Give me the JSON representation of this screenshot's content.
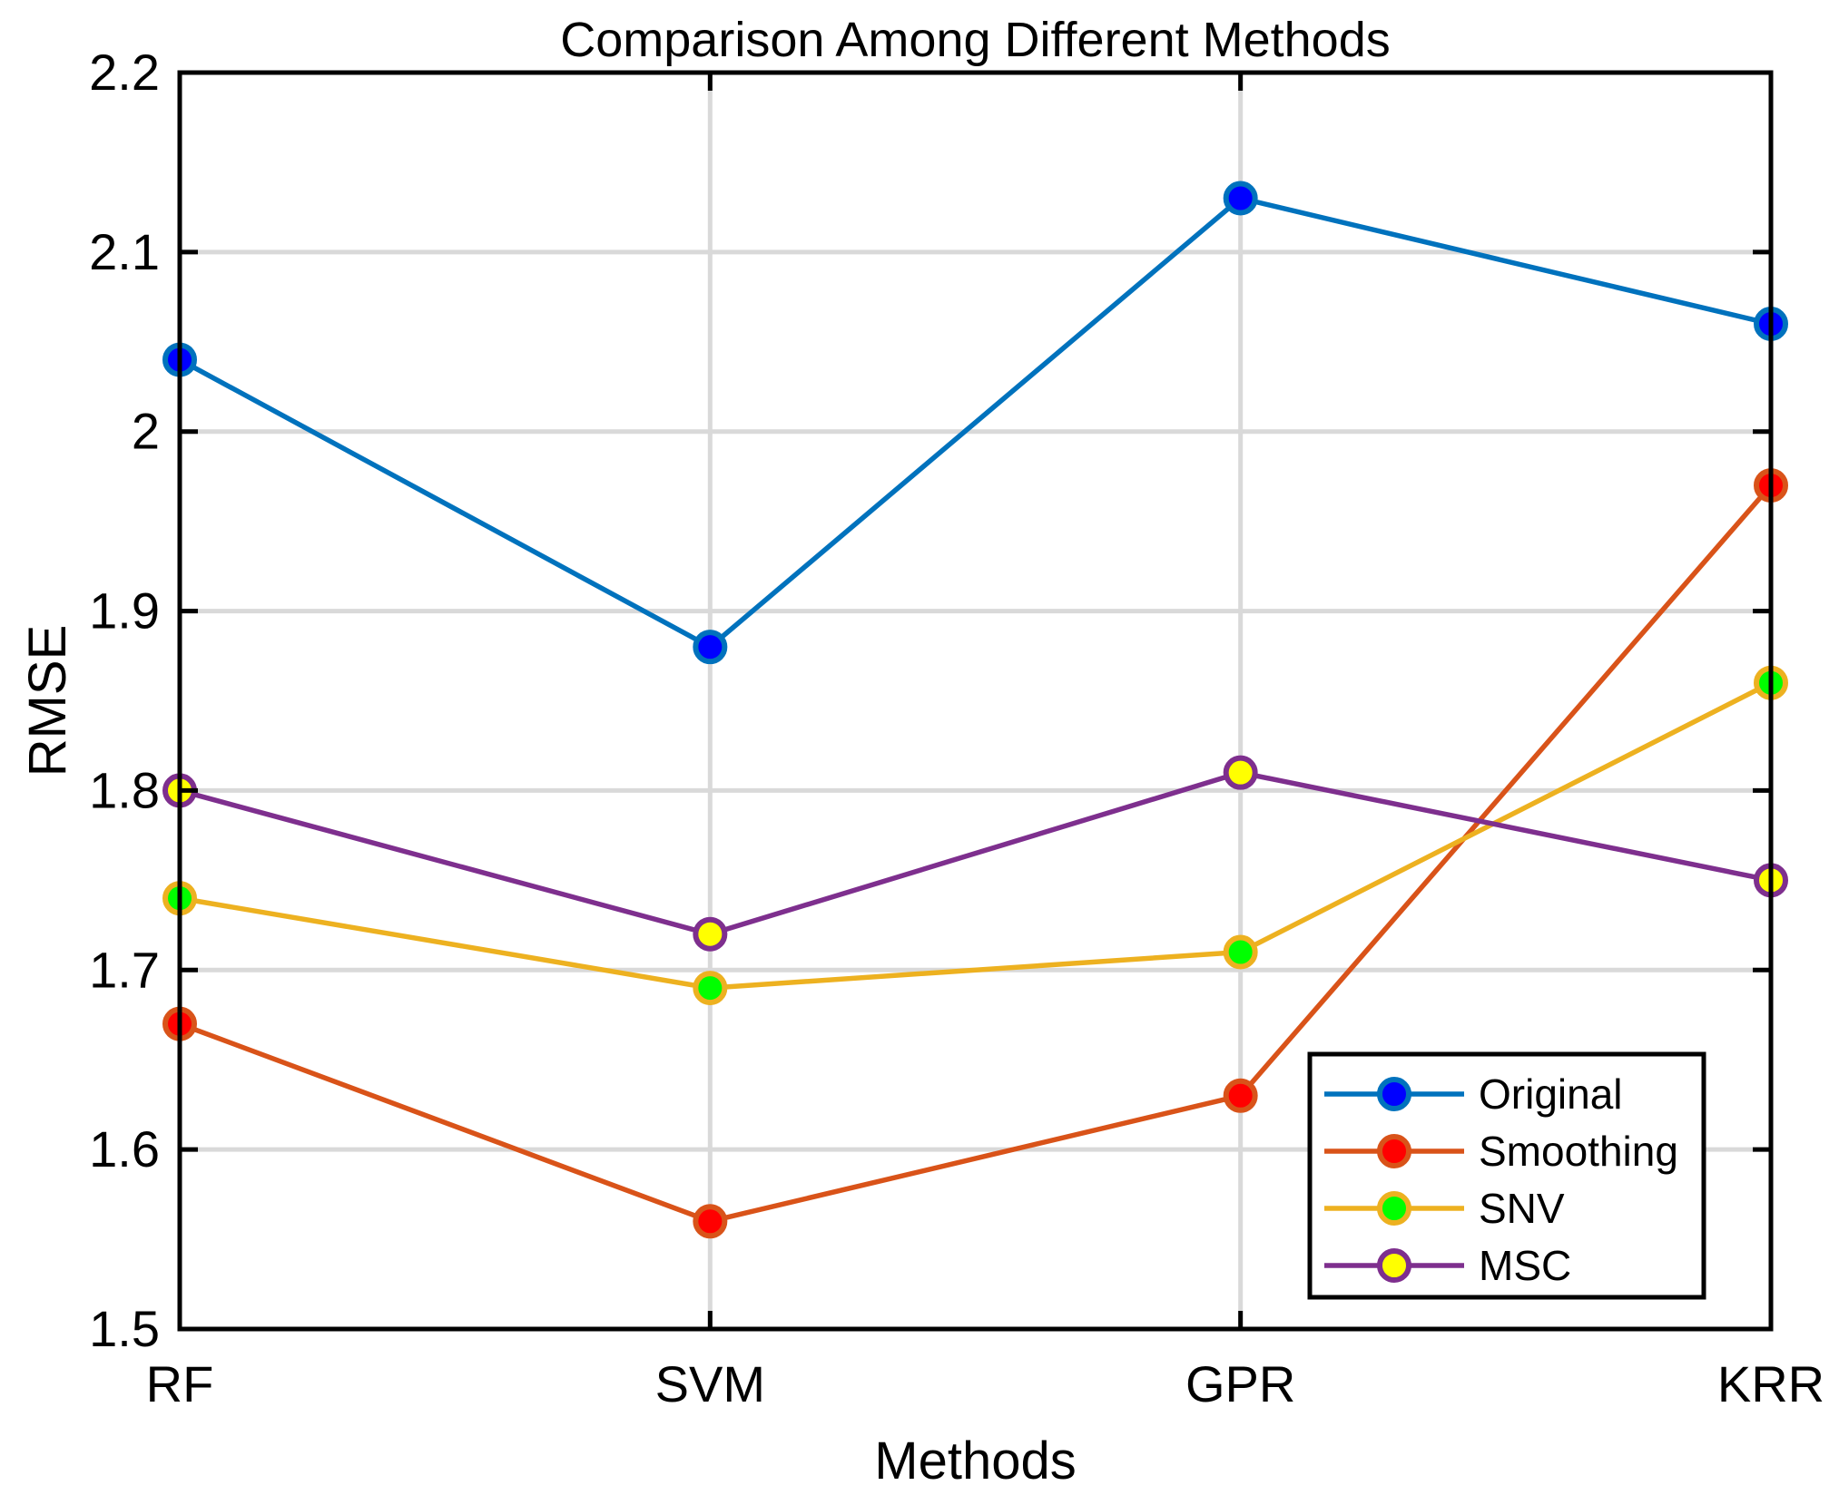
{
  "chart_data": {
    "type": "line",
    "title": "Comparison Among Different Methods",
    "xlabel": "Methods",
    "ylabel": "RMSE",
    "categories": [
      "RF",
      "SVM",
      "GPR",
      "KRR"
    ],
    "ylim": [
      1.5,
      2.2
    ],
    "yticks": [
      1.5,
      1.6,
      1.7,
      1.8,
      1.9,
      2,
      2.1,
      2.2
    ],
    "ytick_labels": [
      "1.5",
      "1.6",
      "1.7",
      "1.8",
      "1.9",
      "2",
      "2.1",
      "2.2"
    ],
    "grid": true,
    "legend_position": "bottom-right",
    "series": [
      {
        "name": "Original",
        "values": [
          2.04,
          1.88,
          2.13,
          2.06
        ],
        "line_color": "#0072BD",
        "marker_fill": "#0000FF"
      },
      {
        "name": "Smoothing",
        "values": [
          1.67,
          1.56,
          1.63,
          1.97
        ],
        "line_color": "#D95319",
        "marker_fill": "#FF0000"
      },
      {
        "name": "SNV",
        "values": [
          1.74,
          1.69,
          1.71,
          1.86
        ],
        "line_color": "#EDB120",
        "marker_fill": "#00FF00"
      },
      {
        "name": "MSC",
        "values": [
          1.8,
          1.72,
          1.81,
          1.75
        ],
        "line_color": "#7E2F8E",
        "marker_fill": "#FFFF00"
      }
    ]
  }
}
